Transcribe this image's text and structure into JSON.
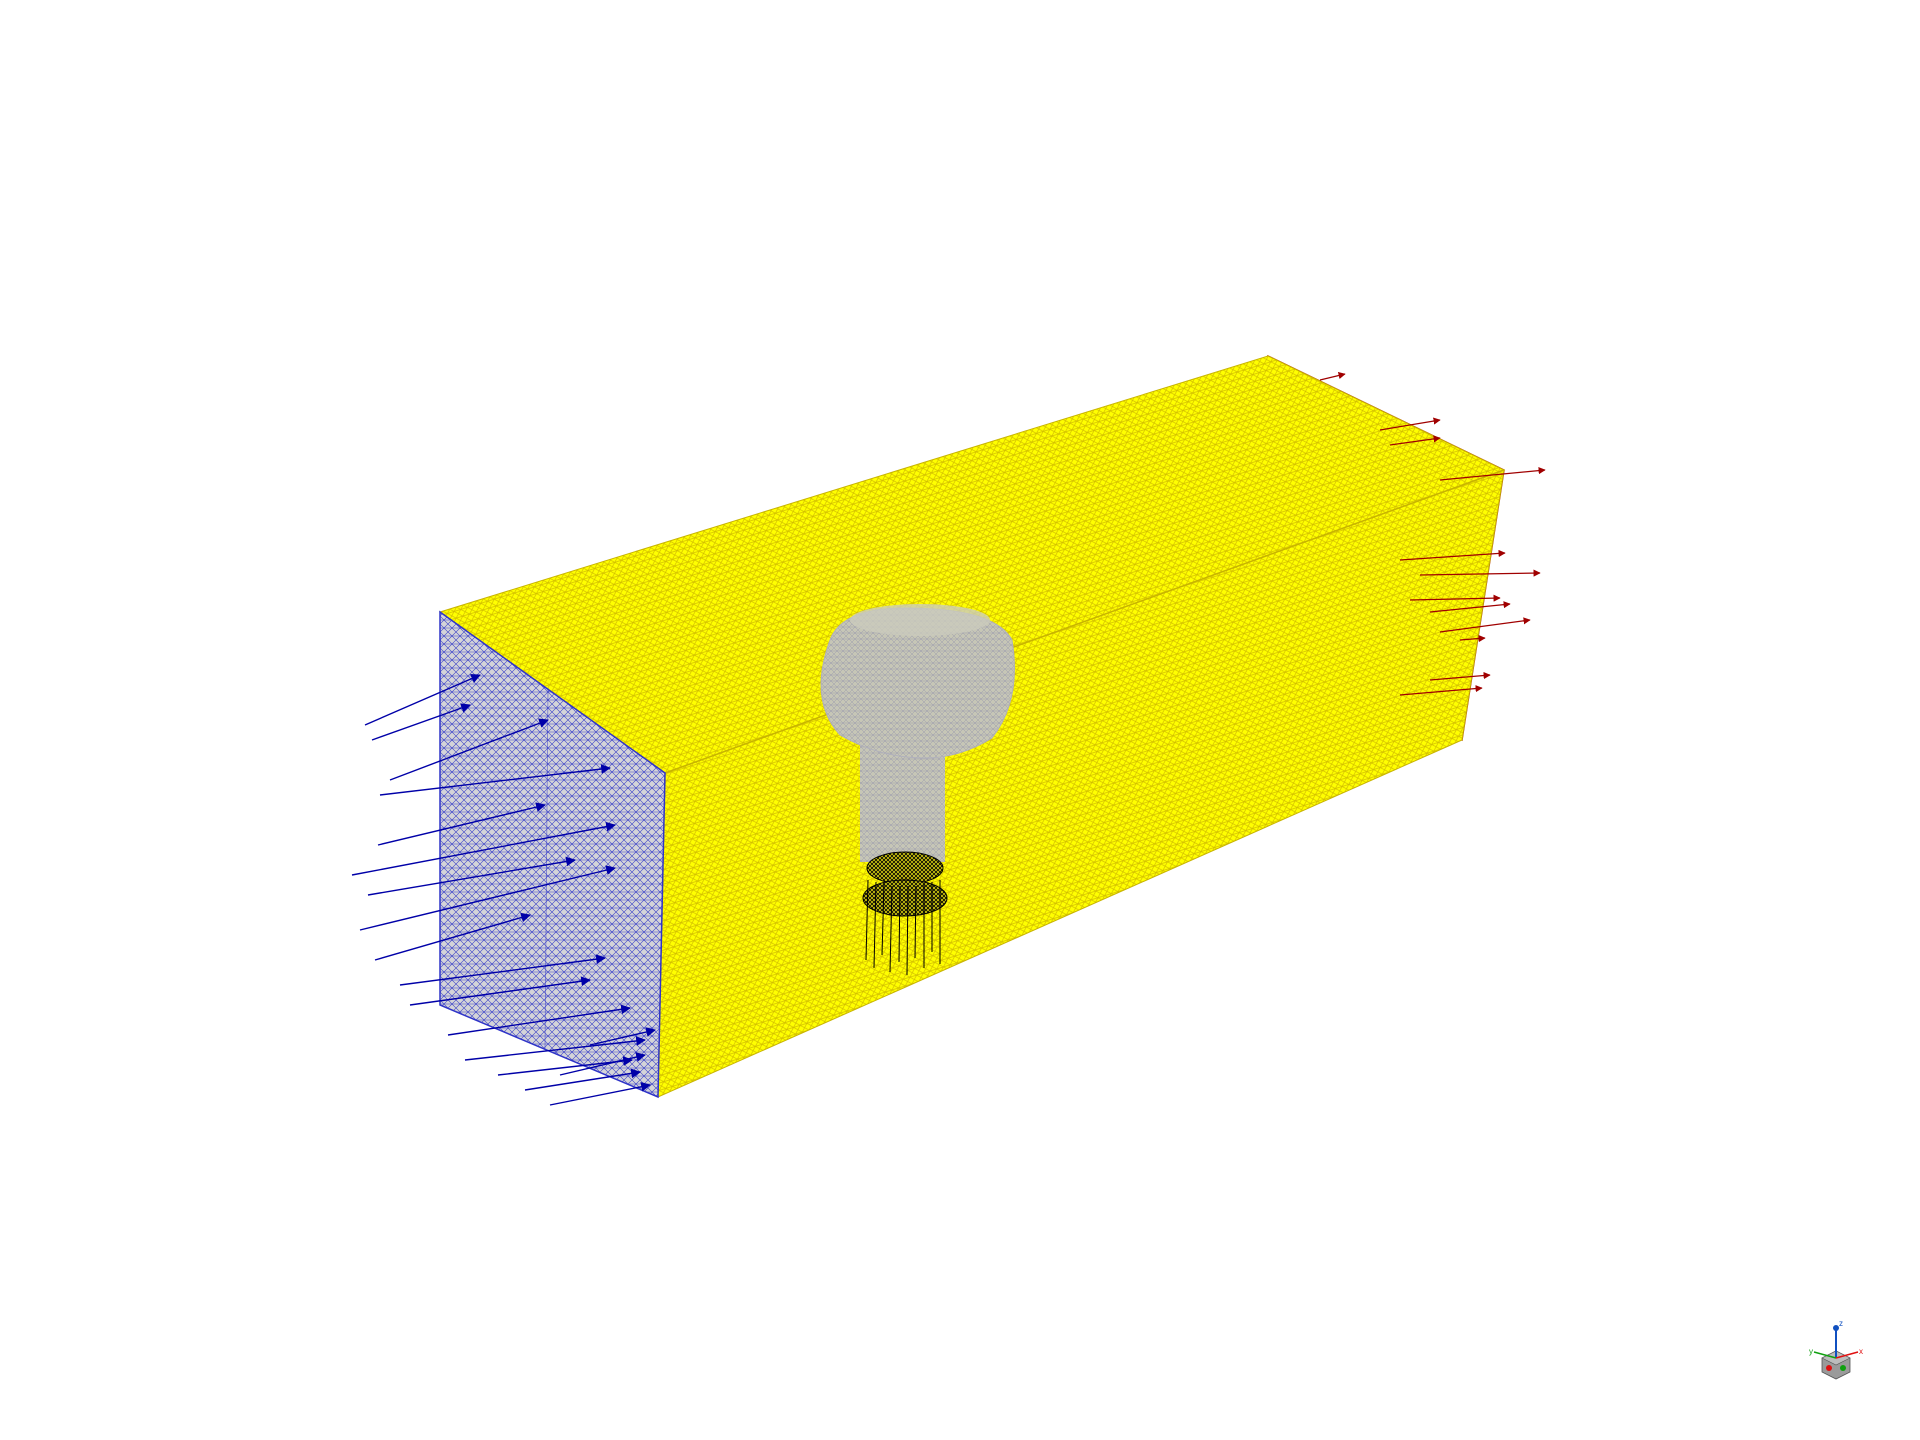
{
  "viewport": {
    "background": "#ffffff",
    "model": "tetrahedral-mesh-wind-tunnel-domain",
    "colors": {
      "domain_fill": "#ffff00",
      "domain_mesh": "#d8c400",
      "inlet_fill": "#d4d4d8",
      "inlet_mesh": "#2f34c8",
      "inlet_arrow": "#0000a8",
      "outlet_fill": "#e6a04a",
      "outlet_mesh": "#b03000",
      "outlet_arrow": "#a00000",
      "body_fill": "#c8c8b8",
      "body_mesh": "#9a9aa8",
      "nozzle_mesh": "#000000"
    },
    "boundaries": [
      {
        "name": "inlet",
        "arrow_direction": "into-domain",
        "color_key": "inlet_arrow"
      },
      {
        "name": "outlet",
        "arrow_direction": "out-of-domain",
        "color_key": "outlet_arrow"
      }
    ]
  },
  "triad": {
    "axes": [
      {
        "label": "x",
        "color": "#e01010"
      },
      {
        "label": "y",
        "color": "#10a010"
      },
      {
        "label": "z",
        "color": "#1050c0"
      }
    ],
    "icon": "view-orientation-triad-icon"
  }
}
